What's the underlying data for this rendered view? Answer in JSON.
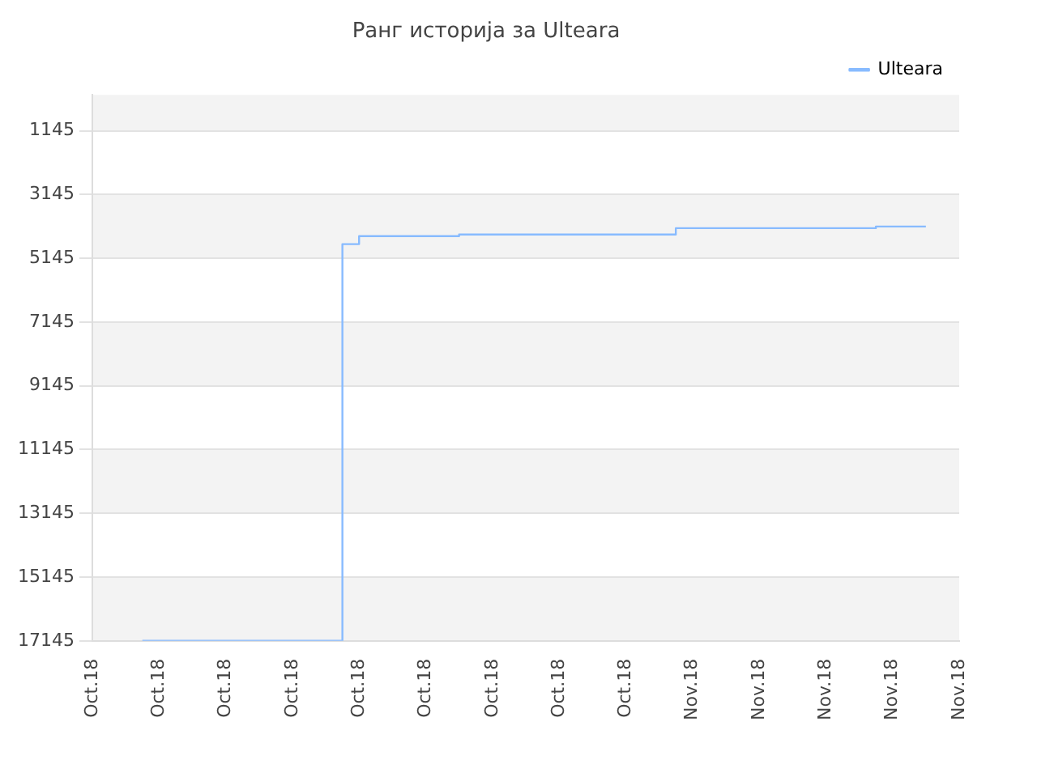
{
  "chart_data": {
    "type": "step",
    "title": "Ранг историја за Ulteara",
    "categories": [
      "Oct.18",
      null,
      null,
      null,
      "Oct.18",
      null,
      null,
      null,
      "Oct.18",
      null,
      null,
      null,
      "Oct.18",
      null,
      null,
      null,
      "Oct.18",
      null,
      null,
      null,
      "Oct.18",
      null,
      null,
      null,
      "Oct.18",
      null,
      null,
      null,
      "Oct.18",
      null,
      null,
      null,
      "Oct.18",
      null,
      null,
      null,
      "Nov.18",
      null,
      null,
      null,
      "Nov.18",
      null,
      null,
      null,
      "Nov.18",
      null,
      null,
      null,
      "Nov.18",
      null,
      null,
      null,
      "Nov.18"
    ],
    "series": [
      {
        "name": "Ulteara",
        "color": "#88bbff",
        "values": [
          null,
          null,
          null,
          17145,
          17145,
          17145,
          17145,
          17145,
          17145,
          17145,
          17145,
          17145,
          17145,
          17145,
          17145,
          4700,
          4450,
          4450,
          4450,
          4450,
          4450,
          4450,
          4400,
          4400,
          4400,
          4400,
          4400,
          4400,
          4400,
          4400,
          4400,
          4400,
          4400,
          4400,
          4400,
          4200,
          4200,
          4200,
          4200,
          4200,
          4200,
          4200,
          4200,
          4200,
          4200,
          4200,
          4200,
          4150,
          4150,
          4150,
          4150,
          null,
          null
        ]
      }
    ],
    "ylim": [
      17145,
      19
    ],
    "yticks": [
      1145,
      3145,
      5145,
      7145,
      9145,
      11145,
      13145,
      15145,
      17145
    ],
    "grid": "y",
    "legend": "top right",
    "marker": "none",
    "line_style": "solid"
  }
}
